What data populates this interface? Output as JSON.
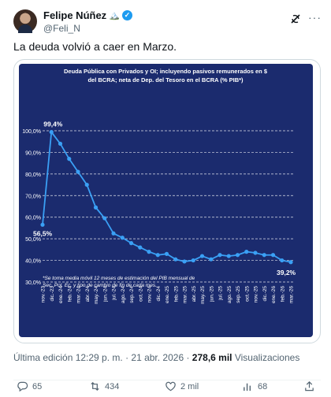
{
  "author": {
    "name": "Felipe Núñez",
    "emoji": "🏔️",
    "handle": "@Feli_N"
  },
  "tweet": {
    "text": "La deuda volvió a caer en Marzo."
  },
  "chart_data": {
    "type": "line",
    "title": "Deuda Pública con Privados y OI; incluyendo pasivos remunerados en $ del BCRA; neta de Dep. del Tesoro en el BCRA (% PIB*)",
    "x": [
      "nov.-23",
      "dic.-23",
      "ene.-24",
      "feb.-24",
      "mar.-24",
      "abr.-24",
      "may.-24",
      "jun.-24",
      "jul.-24",
      "ago.-24",
      "sep.-24",
      "oct.-24",
      "nov.-24",
      "dic.-24",
      "ene.-25",
      "feb.-25",
      "mar.-25",
      "abr.-25",
      "may.-25",
      "jun.-25",
      "jul.-25",
      "ago.-25",
      "sep.-25",
      "oct.-25",
      "nov.-25",
      "dic.-25",
      "ene.-26",
      "feb.-26",
      "mar.-26"
    ],
    "series": [
      {
        "values": [
          56.5,
          99.4,
          94.0,
          87.0,
          81.0,
          75.0,
          64.5,
          59.5,
          52.5,
          50.5,
          48.0,
          46.0,
          44.0,
          42.5,
          43.0,
          40.5,
          39.5,
          40.0,
          42.0,
          40.5,
          42.5,
          42.0,
          42.5,
          44.0,
          43.5,
          42.5,
          42.5,
          40.0,
          39.2
        ]
      }
    ],
    "ylim": [
      30,
      100
    ],
    "yticks": [
      "100,0%",
      "90,0%",
      "80,0%",
      "70,0%",
      "60,0%",
      "50,0%",
      "40,0%",
      "30,0%"
    ],
    "annotations": [
      "99,4%",
      "56,5%",
      "39,2%"
    ],
    "footnote": [
      "*Se toma media móvil 12 meses de estimación del PIB mensual de",
      "Sec. Pol. Ec. y tipo de cambio de fin de cada mes."
    ],
    "grid": true,
    "colors": {
      "background": "#1b2b6e",
      "line": "#3aa0f5",
      "text": "#ffffff"
    }
  },
  "meta": {
    "prefix": "Última edición 12:29 p. m. · 21 abr. 2026 · ",
    "views": "278,6 mil",
    "views_label": " Visualizaciones"
  },
  "actions": {
    "replies": "65",
    "reposts": "434",
    "likes": "2 mil",
    "bookmarks": "68"
  },
  "icons": [
    "verified-badge-icon",
    "grok-icon",
    "more-icon",
    "reply-icon",
    "repost-icon",
    "like-icon",
    "bookmark-icon"
  ]
}
